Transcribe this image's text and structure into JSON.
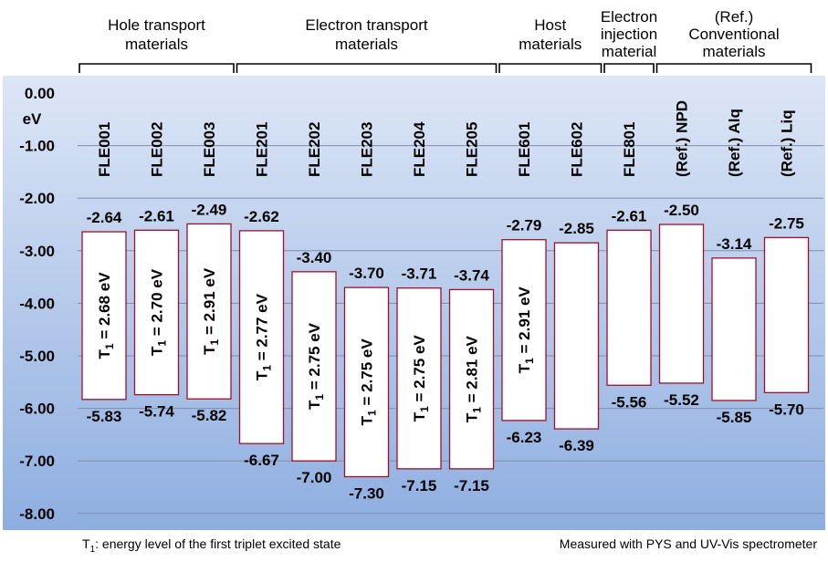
{
  "chart_data": {
    "type": "bar",
    "title": "",
    "ylabel": "eV",
    "ylim": [
      -8,
      0
    ],
    "yticks": [
      "0.00",
      "-1.00",
      "-2.00",
      "-3.00",
      "-4.00",
      "-5.00",
      "-6.00",
      "-7.00",
      "-8.00"
    ],
    "grid": true,
    "categories": [
      "FLE001",
      "FLE002",
      "FLE003",
      "FLE201",
      "FLE202",
      "FLE203",
      "FLE204",
      "FLE205",
      "FLE601",
      "FLE602",
      "FLE801",
      "(Ref.) NPD",
      "(Ref.) Alq",
      "(Ref.) Liq"
    ],
    "series": [
      {
        "name": "",
        "values": [
          -2.64,
          -2.61,
          -2.49,
          -2.62,
          -3.4,
          -3.7,
          -3.71,
          -3.74,
          -2.79,
          -2.85,
          -2.61,
          -2.5,
          -3.14,
          -2.75
        ]
      },
      {
        "name": "",
        "values": [
          -5.83,
          -5.74,
          -5.82,
          -6.67,
          -7.0,
          -7.3,
          -7.15,
          -7.15,
          -6.23,
          -6.39,
          -5.56,
          -5.52,
          -5.85,
          -5.7
        ]
      }
    ],
    "top_labels": [
      "-2.64",
      "-2.61",
      "-2.49",
      "-2.62",
      "-3.40",
      "-3.70",
      "-3.71",
      "-3.74",
      "-2.79",
      "-2.85",
      "-2.61",
      "-2.50",
      "-3.14",
      "-2.75"
    ],
    "bottom_labels": [
      "-5.83",
      "-5.74",
      "-5.82",
      "-6.67",
      "-7.00",
      "-7.30",
      "-7.15",
      "-7.15",
      "-6.23",
      "-6.39",
      "-5.56",
      "-5.52",
      "-5.85",
      "-5.70"
    ],
    "triplet_labels": [
      "= 2.68 eV",
      "= 2.70 eV",
      "= 2.91 eV",
      "= 2.77 eV",
      "= 2.75 eV",
      "= 2.75 eV",
      "= 2.75 eV",
      "= 2.81 eV",
      "= 2.91 eV",
      null,
      null,
      null,
      null,
      null
    ],
    "groups": [
      {
        "lines": [
          "Hole transport",
          "materials"
        ],
        "start": 0,
        "end": 2
      },
      {
        "lines": [
          "Electron transport",
          "materials"
        ],
        "start": 3,
        "end": 7
      },
      {
        "lines": [
          "Host",
          "materials"
        ],
        "start": 8,
        "end": 9
      },
      {
        "lines": [
          "Electron",
          "injection",
          "material"
        ],
        "start": 10,
        "end": 10
      },
      {
        "lines": [
          "(Ref.)",
          "Conventional",
          "materials"
        ],
        "start": 11,
        "end": 13
      }
    ],
    "colors": {
      "bar_fill": "#ffffff",
      "bar_stroke": "#a0102a",
      "plot_bg_top": "#dde6f6",
      "plot_bg_bottom": "#8eaee0"
    }
  },
  "footnote_left": {
    "symbol": "T",
    "sub": "1",
    "text": ": energy level of the first triplet excited state"
  },
  "footnote_right": "Measured with PYS and UV-Vis spectrometer"
}
